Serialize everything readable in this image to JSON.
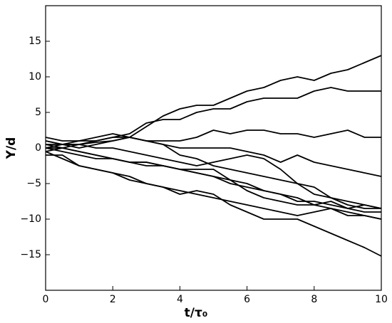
{
  "chart_data": {
    "type": "line",
    "x_label": "t/τ₀",
    "y_label": "Y/d",
    "x": [
      0,
      0.5,
      1,
      1.5,
      2,
      2.5,
      3,
      3.5,
      4,
      4.5,
      5,
      5.5,
      6,
      6.5,
      7,
      7.5,
      8,
      8.5,
      9,
      9.5,
      10
    ],
    "color": "#000000",
    "series": [
      {
        "values": [
          0,
          0.5,
          0.5,
          0.8,
          1,
          1.5,
          3,
          4.5,
          5.5,
          6,
          6,
          7,
          8,
          8.5,
          9.5,
          10,
          9.5,
          10.5,
          11,
          12,
          13
        ]
      },
      {
        "values": [
          1,
          0.5,
          1,
          1,
          1.5,
          2,
          3.5,
          4,
          4,
          5,
          5.5,
          5.5,
          6.5,
          7,
          7,
          7,
          8,
          8.5,
          8,
          8,
          8
        ]
      },
      {
        "values": [
          0.5,
          0.5,
          0,
          0.5,
          1,
          1.5,
          1,
          1,
          1,
          1.5,
          2.5,
          2,
          2.5,
          2.5,
          2,
          2,
          1.5,
          2,
          2.5,
          1.5,
          1.5
        ]
      },
      {
        "values": [
          1.5,
          1,
          1,
          1.5,
          2,
          1.5,
          1,
          0.5,
          0,
          0,
          0,
          0,
          -0.5,
          -1,
          -2,
          -1,
          -2,
          -2.5,
          -3,
          -3.5,
          -4
        ]
      },
      {
        "values": [
          0,
          0,
          -0.5,
          -1,
          -1.5,
          -2,
          -2,
          -2.5,
          -3,
          -3.5,
          -4,
          -5,
          -5.5,
          -6,
          -6.5,
          -7.5,
          -7.5,
          -8,
          -8.5,
          -8,
          -8.5
        ]
      },
      {
        "values": [
          -0.5,
          -1.5,
          -2.5,
          -3,
          -3.5,
          -4,
          -5,
          -5.5,
          -6.5,
          -6,
          -6.5,
          -8,
          -9,
          -10,
          -10,
          -10,
          -11,
          -12,
          -13,
          -14,
          -15.2
        ]
      },
      {
        "values": [
          0,
          -0.5,
          -1,
          -1.5,
          -1.5,
          -2,
          -2.5,
          -2.5,
          -3,
          -3.5,
          -4,
          -4.5,
          -5,
          -6,
          -6.5,
          -7,
          -8,
          -8.5,
          -9,
          -9.5,
          -10
        ]
      },
      {
        "values": [
          1,
          0.5,
          0.5,
          0,
          0,
          -0.5,
          -1,
          -1.5,
          -2,
          -2.5,
          -2,
          -1.5,
          -1,
          -1.5,
          -3,
          -5,
          -6.5,
          -7,
          -8,
          -8.5,
          -8.5
        ]
      },
      {
        "values": [
          0.5,
          0,
          -0.5,
          -1,
          -1.5,
          -2,
          -2,
          -2.5,
          -3,
          -3,
          -3,
          -4.5,
          -6,
          -7,
          -7.5,
          -8,
          -8,
          -7.5,
          -8.5,
          -9,
          -9
        ]
      },
      {
        "values": [
          -0.5,
          0,
          0.5,
          1,
          1.5,
          1.5,
          1,
          0.5,
          -1,
          -1.5,
          -2.5,
          -3,
          -3.5,
          -4,
          -4.5,
          -5,
          -5.5,
          -7,
          -7.5,
          -8,
          -8.5
        ]
      },
      {
        "values": [
          -1,
          -1,
          -2.5,
          -3,
          -3.5,
          -4.5,
          -5,
          -5.5,
          -6,
          -6.5,
          -7,
          -7.5,
          -8,
          -8.5,
          -9,
          -9.5,
          -9,
          -8.5,
          -9.5,
          -9.5,
          -10
        ]
      }
    ],
    "xlim": [
      0,
      10
    ],
    "xticks": [
      0,
      2,
      4,
      6,
      8,
      10
    ],
    "ylim": [
      -20,
      20
    ],
    "yticks": [
      {
        "value": -15,
        "label": "−15"
      },
      {
        "value": -10,
        "label": "−10"
      },
      {
        "value": -5,
        "label": "−5"
      },
      0,
      5,
      10,
      15
    ]
  }
}
